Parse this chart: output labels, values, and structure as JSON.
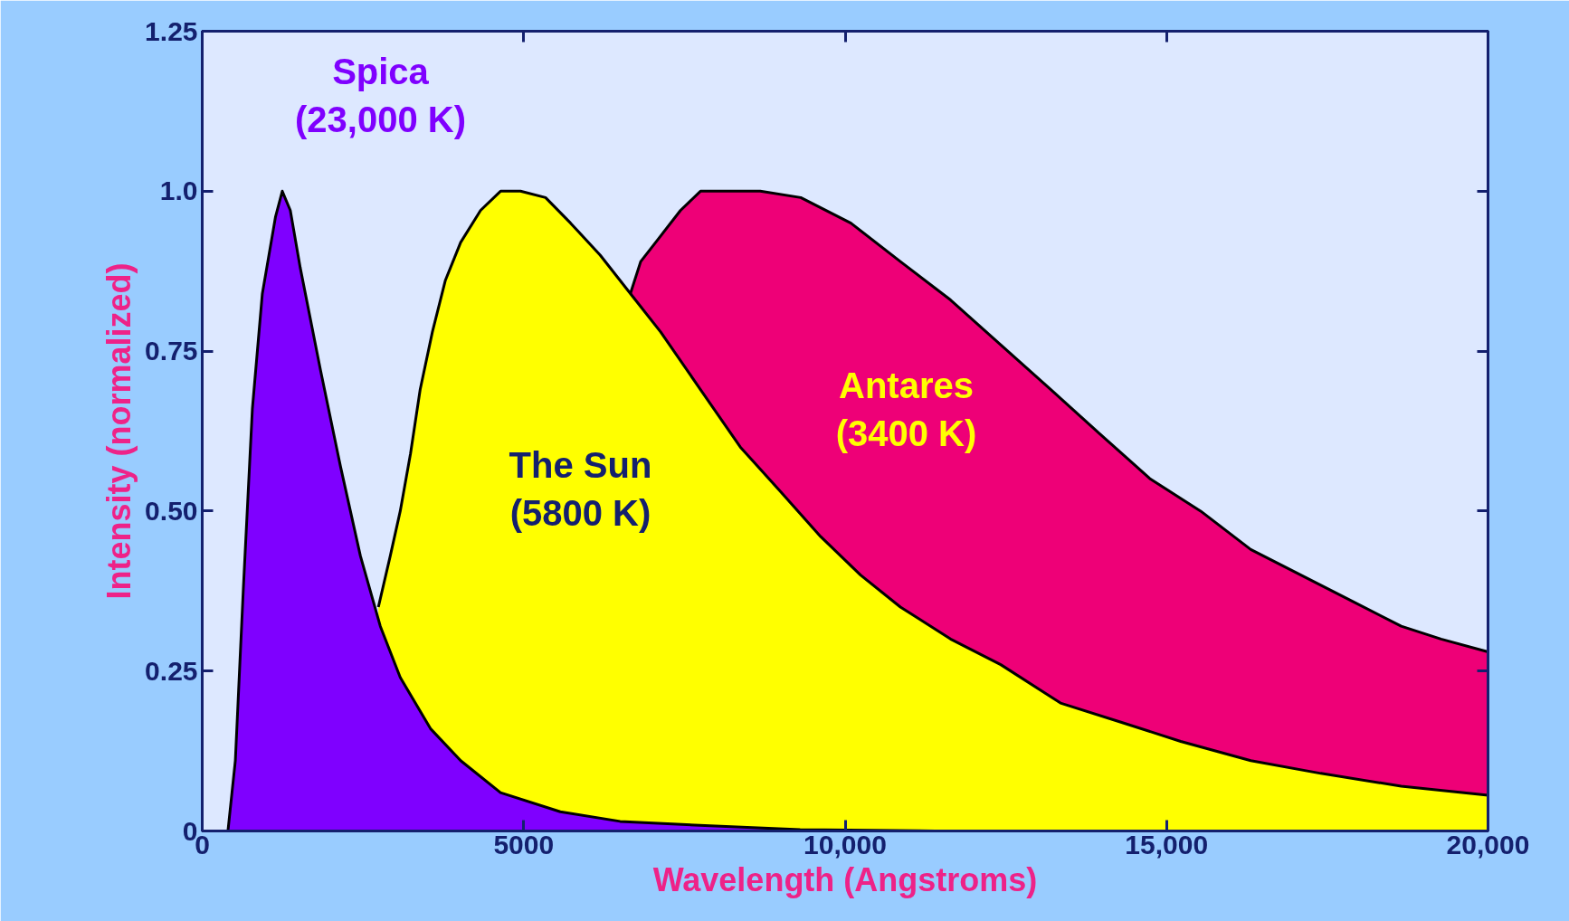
{
  "chart_data": {
    "type": "area",
    "xlabel": "Wavelength (Angstroms)",
    "ylabel": "Intensity (normalized)",
    "xlim": [
      0,
      20000
    ],
    "ylim": [
      0,
      1.25
    ],
    "xticks": [
      0,
      5000,
      {
        "value": 10000,
        "label": "10,000"
      },
      {
        "value": 15000,
        "label": "15,000"
      },
      {
        "value": 20000,
        "label": "20,000"
      }
    ],
    "yticks": [
      0,
      {
        "value": 0.25,
        "label": "0.25"
      },
      {
        "value": 0.5,
        "label": "0.50"
      },
      {
        "value": 0.75,
        "label": "0.75"
      },
      {
        "value": 1.0,
        "label": "1.0"
      },
      {
        "value": 1.25,
        "label": "1.25"
      }
    ],
    "grid": false,
    "series": [
      {
        "color": "#7f00ff",
        "x": [
          400,
          515,
          640,
          780,
          935,
          1140,
          1245,
          1370,
          1525,
          1840,
          2150,
          2460,
          2770,
          3080,
          3550,
          4020,
          4640,
          5570,
          6500,
          7900,
          9300,
          11400
        ],
        "values": [
          0,
          0.11,
          0.38,
          0.66,
          0.84,
          0.96,
          1.0,
          0.97,
          0.88,
          0.72,
          0.57,
          0.43,
          0.32,
          0.24,
          0.16,
          0.11,
          0.06,
          0.03,
          0.015,
          0.008,
          0.002,
          0
        ]
      },
      {
        "color": "#ffff00",
        "x": [
          2740,
          2925,
          3080,
          3240,
          3390,
          3580,
          3780,
          4020,
          4330,
          4640,
          4950,
          5340,
          5730,
          6190,
          6660,
          7130,
          7750,
          8370,
          9000,
          9620,
          10240,
          10860,
          11640,
          12420,
          13350,
          14290,
          15220,
          16310,
          17400,
          18650,
          20000
        ],
        "values": [
          0.35,
          0.43,
          0.5,
          0.59,
          0.69,
          0.78,
          0.86,
          0.92,
          0.97,
          1.0,
          1.0,
          0.99,
          0.95,
          0.9,
          0.84,
          0.78,
          0.69,
          0.6,
          0.53,
          0.46,
          0.4,
          0.35,
          0.3,
          0.26,
          0.2,
          0.17,
          0.14,
          0.11,
          0.09,
          0.07,
          0.056
        ]
      },
      {
        "color": "#ee0077",
        "x": [
          6660,
          6820,
          7130,
          7440,
          7750,
          8680,
          9310,
          10090,
          10860,
          11640,
          12420,
          13200,
          13970,
          14750,
          15530,
          16310,
          17090,
          17870,
          18650,
          19270,
          20000
        ],
        "values": [
          0.84,
          0.89,
          0.93,
          0.97,
          1.0,
          1.0,
          0.99,
          0.95,
          0.89,
          0.83,
          0.76,
          0.69,
          0.62,
          0.55,
          0.5,
          0.44,
          0.4,
          0.36,
          0.32,
          0.3,
          0.28
        ]
      }
    ],
    "annotations": [
      "Spica\n(23,000 K)",
      "The Sun\n(5800 K)",
      "Antares\n(3400 K)"
    ]
  }
}
